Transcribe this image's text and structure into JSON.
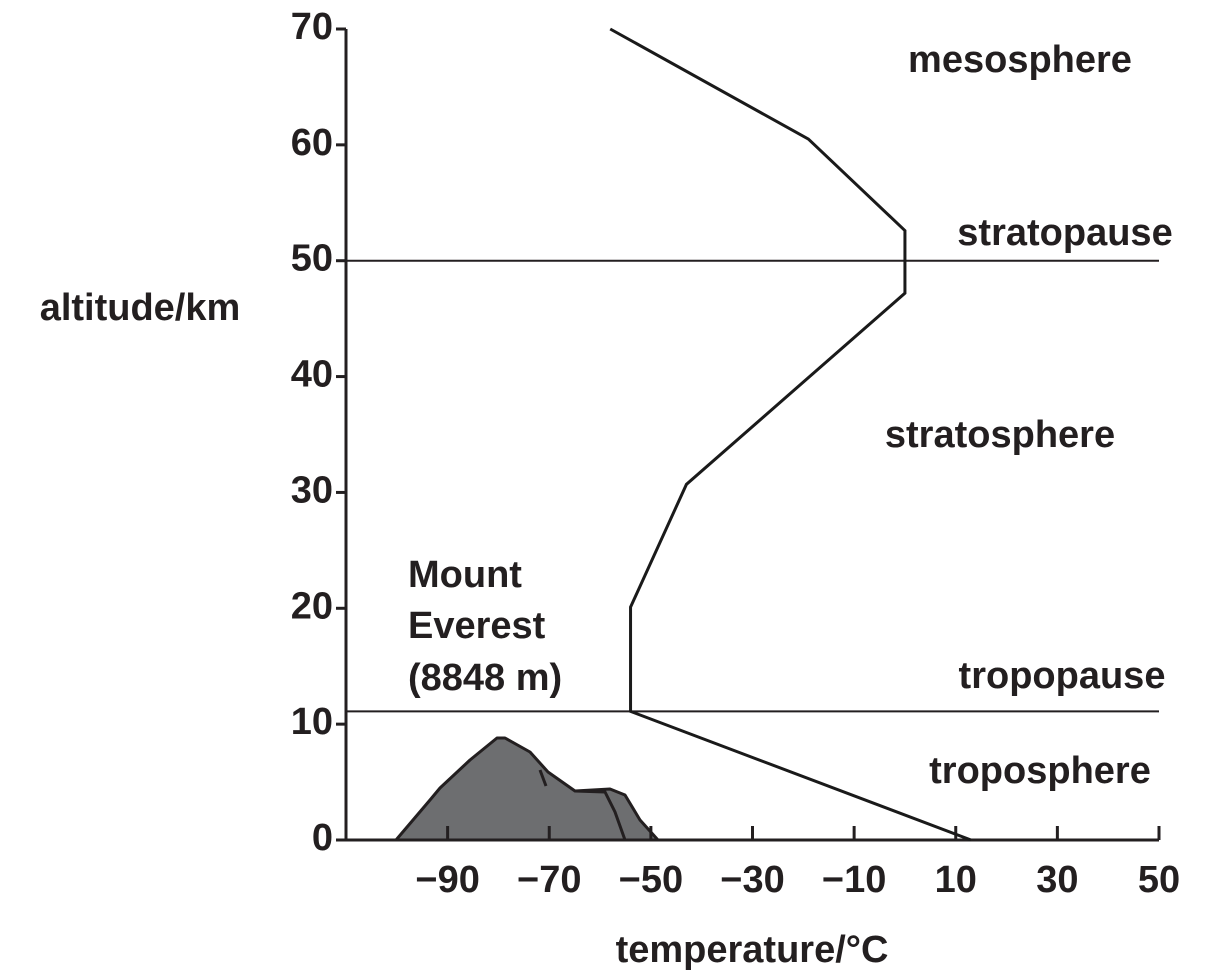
{
  "chart_data": {
    "type": "line",
    "x_label": "temperature/°C",
    "y_label": "altitude/km",
    "series": [
      {
        "color": "#1a1a1a",
        "x": [
          -58,
          -19,
          0,
          0,
          -43,
          -54,
          -54,
          13
        ],
        "values": [
          70,
          60.5,
          52.6,
          47.2,
          30.7,
          20.1,
          11.1,
          0
        ]
      }
    ],
    "xlim": [
      -110,
      50
    ],
    "xticks": [
      {
        "value": -90,
        "label": "−90"
      },
      {
        "value": -70,
        "label": "−70"
      },
      {
        "value": -50,
        "label": "−50"
      },
      {
        "value": -30,
        "label": "−30"
      },
      {
        "value": -10,
        "label": "−10"
      },
      10,
      30,
      50
    ],
    "ylim": [
      0,
      70
    ],
    "yticks": [
      0,
      10,
      20,
      30,
      40,
      50,
      60,
      70
    ],
    "hlines": [
      {
        "value": 50,
        "label": "stratopause"
      },
      {
        "value": 11.1,
        "label": "tropopause"
      }
    ],
    "annotations": [
      "mesosphere",
      "stratosphere",
      "troposphere",
      "Mount",
      "Everest",
      "(8848 m)"
    ]
  }
}
